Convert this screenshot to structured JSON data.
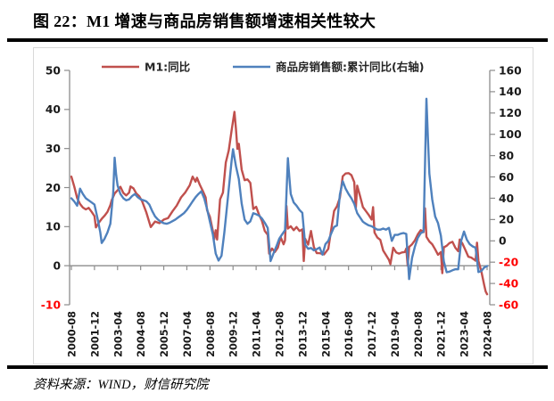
{
  "figure": {
    "title": "图 22：M1 增速与商品房销售额增速相关性较大",
    "source": "资料来源：WIND，财信研究院"
  },
  "legend": {
    "items": [
      {
        "label": "M1:同比",
        "color": "#C0504D"
      },
      {
        "label": "商品房销售额:累计同比(右轴)",
        "color": "#4F81BD"
      }
    ]
  },
  "chart_data": {
    "type": "line",
    "title": "M1增速与商品房销售额增速相关性较大",
    "x_start": "2000-08",
    "x_end": "2024-08",
    "months_span": 288,
    "x_tick_labels": [
      "2000-08",
      "2001-12",
      "2003-04",
      "2004-08",
      "2005-12",
      "2007-04",
      "2008-08",
      "2009-12",
      "2011-04",
      "2012-08",
      "2013-12",
      "2015-04",
      "2016-08",
      "2017-12",
      "2019-04",
      "2020-08",
      "2021-12",
      "2023-04",
      "2024-08"
    ],
    "x_tick_months": [
      0,
      16,
      32,
      48,
      64,
      80,
      96,
      112,
      128,
      144,
      160,
      176,
      192,
      208,
      224,
      240,
      256,
      272,
      288
    ],
    "left_axis": {
      "label": "M1:同比 (%)",
      "min": -10,
      "max": 50,
      "ticks": [
        50,
        40,
        30,
        20,
        10,
        0,
        -10
      ]
    },
    "right_axis": {
      "label": "商品房销售额:累计同比 (%)",
      "min": -60,
      "max": 160,
      "ticks": [
        160,
        140,
        120,
        100,
        80,
        60,
        40,
        20,
        0,
        -20,
        -40,
        -60
      ]
    },
    "style": {
      "axis_color": "#8C8C8C",
      "negative_tick_color": "#FF0000",
      "tick_label_color": "#1A1A1A",
      "grid": "off",
      "legend_position": "top-center"
    },
    "series": [
      {
        "name": "M1:同比",
        "axis": "left",
        "color": "#C0504D",
        "points": [
          [
            0,
            22.8
          ],
          [
            2,
            20.3
          ],
          [
            4,
            17.3
          ],
          [
            6,
            15.8
          ],
          [
            8,
            14.9
          ],
          [
            10,
            14.4
          ],
          [
            12,
            14.8
          ],
          [
            14,
            13.8
          ],
          [
            16,
            12.7
          ],
          [
            17,
            9.8
          ],
          [
            19,
            11.0
          ],
          [
            21,
            12.0
          ],
          [
            23,
            12.8
          ],
          [
            25,
            13.8
          ],
          [
            27,
            15.5
          ],
          [
            28,
            16.8
          ],
          [
            30,
            18.5
          ],
          [
            32,
            19.3
          ],
          [
            34,
            20.2
          ],
          [
            36,
            18.6
          ],
          [
            38,
            18.0
          ],
          [
            40,
            18.7
          ],
          [
            41,
            20.3
          ],
          [
            43,
            19.8
          ],
          [
            45,
            18.5
          ],
          [
            47,
            17.8
          ],
          [
            49,
            16.5
          ],
          [
            52,
            13.6
          ],
          [
            55,
            9.9
          ],
          [
            58,
            11.3
          ],
          [
            61,
            10.9
          ],
          [
            64,
            11.8
          ],
          [
            67,
            12.2
          ],
          [
            70,
            13.9
          ],
          [
            73,
            15.4
          ],
          [
            76,
            17.5
          ],
          [
            79,
            18.8
          ],
          [
            82,
            20.6
          ],
          [
            84,
            22.8
          ],
          [
            86,
            21.5
          ],
          [
            87,
            22.5
          ],
          [
            89,
            20.7
          ],
          [
            91,
            19.2
          ],
          [
            93,
            17.5
          ],
          [
            94,
            14.2
          ],
          [
            96,
            12.5
          ],
          [
            98,
            8.9
          ],
          [
            99,
            6.8
          ],
          [
            100,
            9.1
          ],
          [
            101,
            6.7
          ],
          [
            103,
            17.0
          ],
          [
            105,
            18.7
          ],
          [
            107,
            26.4
          ],
          [
            109,
            29.5
          ],
          [
            111,
            34.6
          ],
          [
            113,
            39.4
          ],
          [
            114,
            35.0
          ],
          [
            115,
            29.9
          ],
          [
            116,
            31.2
          ],
          [
            118,
            24.6
          ],
          [
            120,
            21.9
          ],
          [
            122,
            22.1
          ],
          [
            124,
            21.2
          ],
          [
            126,
            14.5
          ],
          [
            128,
            15.1
          ],
          [
            130,
            13.1
          ],
          [
            132,
            11.5
          ],
          [
            134,
            8.9
          ],
          [
            136,
            7.9
          ],
          [
            137,
            3.1
          ],
          [
            139,
            4.4
          ],
          [
            141,
            3.5
          ],
          [
            143,
            4.6
          ],
          [
            145,
            7.3
          ],
          [
            147,
            5.5
          ],
          [
            148,
            6.5
          ],
          [
            149,
            15.3
          ],
          [
            150,
            9.5
          ],
          [
            152,
            10.1
          ],
          [
            154,
            9.1
          ],
          [
            156,
            9.9
          ],
          [
            158,
            8.9
          ],
          [
            160,
            9.3
          ],
          [
            161,
            1.2
          ],
          [
            162,
            6.9
          ],
          [
            164,
            5.4
          ],
          [
            166,
            8.9
          ],
          [
            168,
            4.8
          ],
          [
            170,
            3.2
          ],
          [
            172,
            3.2
          ],
          [
            175,
            2.9
          ],
          [
            178,
            4.3
          ],
          [
            180,
            9.3
          ],
          [
            182,
            14.0
          ],
          [
            184,
            15.2
          ],
          [
            186,
            17.4
          ],
          [
            188,
            22.9
          ],
          [
            190,
            23.6
          ],
          [
            192,
            23.7
          ],
          [
            194,
            23.2
          ],
          [
            196,
            21.4
          ],
          [
            197,
            14.5
          ],
          [
            198,
            20.5
          ],
          [
            200,
            17.8
          ],
          [
            202,
            15.0
          ],
          [
            204,
            14.0
          ],
          [
            206,
            13.0
          ],
          [
            208,
            11.8
          ],
          [
            209,
            15.0
          ],
          [
            210,
            8.5
          ],
          [
            212,
            7.2
          ],
          [
            214,
            6.6
          ],
          [
            216,
            3.9
          ],
          [
            218,
            2.7
          ],
          [
            220,
            1.5
          ],
          [
            221,
            0.4
          ],
          [
            223,
            4.6
          ],
          [
            225,
            3.4
          ],
          [
            227,
            3.1
          ],
          [
            229,
            3.4
          ],
          [
            231,
            3.5
          ],
          [
            232,
            4.4
          ],
          [
            233,
            0.0
          ],
          [
            234,
            4.8
          ],
          [
            236,
            5.5
          ],
          [
            238,
            6.5
          ],
          [
            240,
            8.0
          ],
          [
            242,
            9.1
          ],
          [
            244,
            8.6
          ],
          [
            245,
            14.7
          ],
          [
            246,
            7.4
          ],
          [
            248,
            6.2
          ],
          [
            250,
            5.5
          ],
          [
            252,
            4.2
          ],
          [
            254,
            2.8
          ],
          [
            256,
            3.5
          ],
          [
            257,
            -1.9
          ],
          [
            258,
            4.7
          ],
          [
            260,
            5.1
          ],
          [
            262,
            5.8
          ],
          [
            264,
            6.1
          ],
          [
            266,
            4.6
          ],
          [
            268,
            3.7
          ],
          [
            269,
            6.7
          ],
          [
            271,
            5.6
          ],
          [
            273,
            4.0
          ],
          [
            275,
            2.3
          ],
          [
            277,
            2.1
          ],
          [
            279,
            1.6
          ],
          [
            280,
            1.3
          ],
          [
            281,
            5.9
          ],
          [
            282,
            1.2
          ],
          [
            284,
            -1.4
          ],
          [
            286,
            -5.0
          ],
          [
            287,
            -6.6
          ],
          [
            288,
            -7.3
          ]
        ]
      },
      {
        "name": "商品房销售额:累计同比(右轴)",
        "axis": "right",
        "color": "#4F81BD",
        "points": [
          [
            0,
            40
          ],
          [
            2,
            37
          ],
          [
            4,
            33
          ],
          [
            6,
            49
          ],
          [
            8,
            44
          ],
          [
            10,
            40
          ],
          [
            12,
            38
          ],
          [
            14,
            36
          ],
          [
            16,
            34
          ],
          [
            18,
            22
          ],
          [
            20,
            8
          ],
          [
            21,
            -2
          ],
          [
            23,
            2
          ],
          [
            25,
            8
          ],
          [
            27,
            16
          ],
          [
            29,
            45
          ],
          [
            30,
            78
          ],
          [
            31,
            62
          ],
          [
            32,
            52
          ],
          [
            34,
            44
          ],
          [
            36,
            40
          ],
          [
            38,
            38
          ],
          [
            40,
            39
          ],
          [
            42,
            42
          ],
          [
            44,
            44
          ],
          [
            46,
            41
          ],
          [
            48,
            39
          ],
          [
            50,
            38
          ],
          [
            52,
            37
          ],
          [
            54,
            34
          ],
          [
            56,
            28
          ],
          [
            58,
            23
          ],
          [
            60,
            20
          ],
          [
            62,
            18
          ],
          [
            64,
            16.5
          ],
          [
            66,
            16
          ],
          [
            68,
            17
          ],
          [
            70,
            18.5
          ],
          [
            72,
            20
          ],
          [
            74,
            22
          ],
          [
            76,
            24
          ],
          [
            78,
            26
          ],
          [
            80,
            29
          ],
          [
            82,
            33
          ],
          [
            84,
            37
          ],
          [
            86,
            41
          ],
          [
            88,
            44
          ],
          [
            90,
            46.5
          ],
          [
            92,
            40
          ],
          [
            94,
            30
          ],
          [
            96,
            18
          ],
          [
            98,
            6
          ],
          [
            100,
            -12
          ],
          [
            102,
            -18.5
          ],
          [
            104,
            -14
          ],
          [
            106,
            8
          ],
          [
            108,
            35
          ],
          [
            110,
            62
          ],
          [
            111,
            75
          ],
          [
            112,
            86
          ],
          [
            114,
            70
          ],
          [
            116,
            58
          ],
          [
            118,
            35
          ],
          [
            120,
            20
          ],
          [
            122,
            16
          ],
          [
            124,
            18.3
          ],
          [
            126,
            26
          ],
          [
            128,
            25
          ],
          [
            130,
            23.7
          ],
          [
            132,
            21
          ],
          [
            134,
            17
          ],
          [
            136,
            12.1
          ],
          [
            138,
            -19
          ],
          [
            140,
            -12
          ],
          [
            142,
            -5.2
          ],
          [
            144,
            2
          ],
          [
            146,
            6
          ],
          [
            148,
            10
          ],
          [
            150,
            77.6
          ],
          [
            151,
            60
          ],
          [
            152,
            44
          ],
          [
            154,
            36
          ],
          [
            156,
            33
          ],
          [
            158,
            29
          ],
          [
            160,
            26.3
          ],
          [
            162,
            -3.7
          ],
          [
            164,
            -7.5
          ],
          [
            166,
            -6.7
          ],
          [
            168,
            -8.9
          ],
          [
            170,
            -7.8
          ],
          [
            172,
            -6.3
          ],
          [
            174,
            -13
          ],
          [
            176,
            -3
          ],
          [
            178,
            0
          ],
          [
            180,
            7
          ],
          [
            182,
            13
          ],
          [
            184,
            14.4
          ],
          [
            186,
            43.6
          ],
          [
            188,
            55.9
          ],
          [
            190,
            49
          ],
          [
            192,
            44
          ],
          [
            194,
            40
          ],
          [
            196,
            34.8
          ],
          [
            198,
            26
          ],
          [
            200,
            22
          ],
          [
            202,
            18
          ],
          [
            204,
            16
          ],
          [
            206,
            14.5
          ],
          [
            208,
            13.7
          ],
          [
            210,
            12
          ],
          [
            212,
            10.5
          ],
          [
            214,
            10.5
          ],
          [
            216,
            11.5
          ],
          [
            218,
            10.5
          ],
          [
            220,
            12.2
          ],
          [
            222,
            0
          ],
          [
            224,
            5.6
          ],
          [
            226,
            5.6
          ],
          [
            228,
            6.7
          ],
          [
            230,
            7.3
          ],
          [
            232,
            6.5
          ],
          [
            234,
            -35.9
          ],
          [
            236,
            -16
          ],
          [
            238,
            -5.4
          ],
          [
            240,
            2.7
          ],
          [
            242,
            7.2
          ],
          [
            244,
            8.7
          ],
          [
            246,
            133.4
          ],
          [
            247,
            96
          ],
          [
            248,
            63
          ],
          [
            250,
            38.9
          ],
          [
            252,
            22.8
          ],
          [
            254,
            16.6
          ],
          [
            256,
            4.8
          ],
          [
            258,
            -19.3
          ],
          [
            260,
            -29.5
          ],
          [
            262,
            -28.9
          ],
          [
            264,
            -27.6
          ],
          [
            266,
            -26.6
          ],
          [
            268,
            -26.7
          ],
          [
            270,
            -0.1
          ],
          [
            272,
            8.8
          ],
          [
            274,
            1.1
          ],
          [
            276,
            -3.2
          ],
          [
            278,
            -5.2
          ],
          [
            280,
            -6.5
          ],
          [
            282,
            -29.3
          ],
          [
            284,
            -28.3
          ],
          [
            286,
            -25
          ],
          [
            288,
            -23.6
          ]
        ]
      }
    ]
  }
}
